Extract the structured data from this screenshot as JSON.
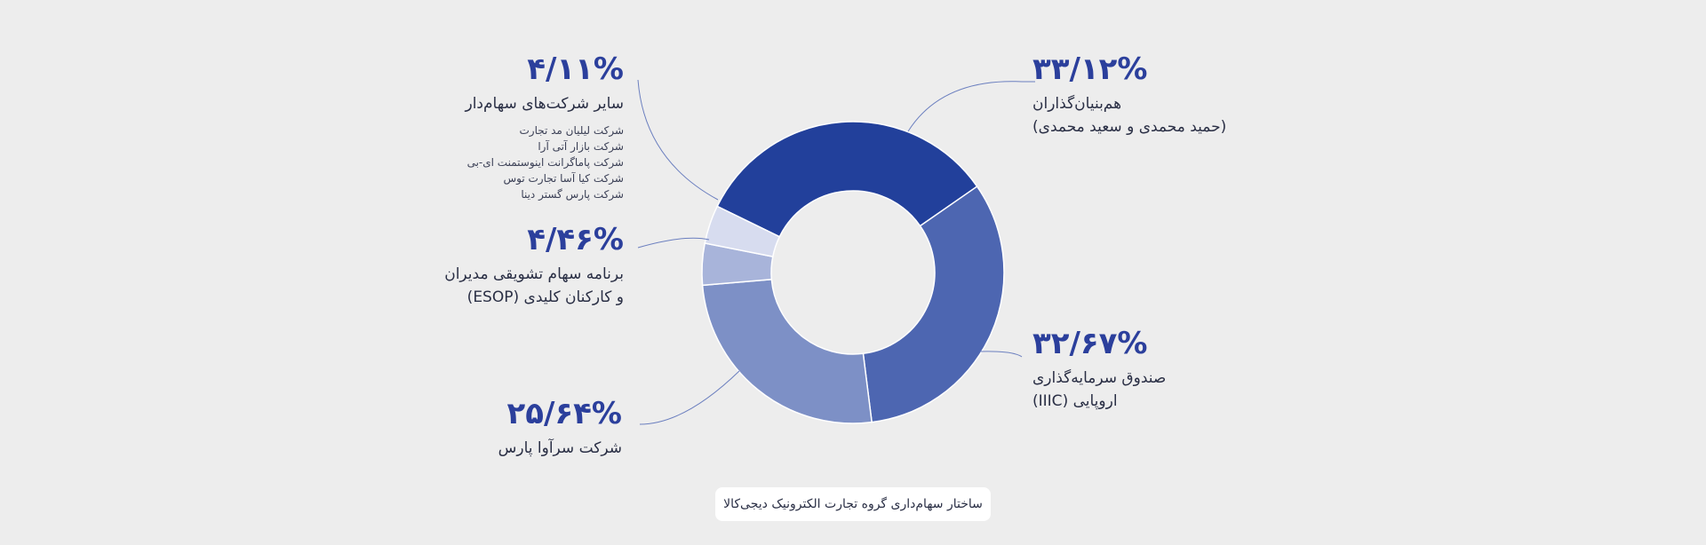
{
  "chart_data": {
    "type": "pie",
    "donut": true,
    "slices": [
      {
        "value": 33.12,
        "label": "۳۳/۱۲%",
        "name": "هم‌بنیان‌گذاران",
        "sub": "(حمید محمدی و سعید محمدی)",
        "color": "#22409b"
      },
      {
        "value": 32.67,
        "label": "۳۲/۶۷%",
        "name": "صندوق سرمایه‌گذاری",
        "sub": "اروپایی (IIIC)",
        "color": "#4d66b1"
      },
      {
        "value": 25.64,
        "label": "۲۵/۶۴%",
        "name": "شرکت سرآوا پارس",
        "sub": "",
        "color": "#7d90c6"
      },
      {
        "value": 4.46,
        "label": "۴/۴۶%",
        "name": "برنامه سهام تشویقی مدیران",
        "sub": "و کارکنان کلیدی (ESOP)",
        "color": "#a8b4da"
      },
      {
        "value": 4.11,
        "label": "۴/۱۱%",
        "name": "سایر شرکت‌های سهام‌دار",
        "sub": "",
        "details": [
          "شرکت لیلیان مد تجارت",
          "شرکت بازار آتی آرا",
          "شرکت پاماگرانت اینوستمنت ای-بی",
          "شرکت کیا آسا تجارت توس",
          "شرکت پارس گستر دینا"
        ],
        "color": "#d7dcef"
      }
    ]
  },
  "caption": "ساختار سهام‌داری گروه تجارت الکترونیک دیجی‌کالا",
  "colors": {
    "background": "#ededed",
    "leader_line": "#6b7fbf",
    "text_accent": "#2b3f9c"
  }
}
